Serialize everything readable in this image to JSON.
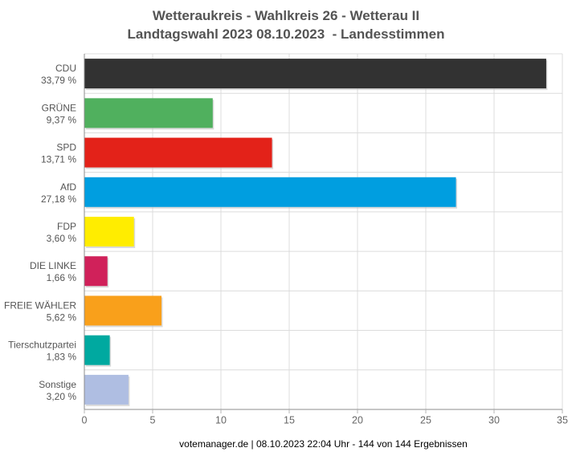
{
  "title": {
    "line1": "Wetteraukreis - Wahlkreis 26 - Wetterau II",
    "line2": "Landtagswahl 2023 08.10.2023  - Landesstimmen"
  },
  "footer": {
    "text": "votemanager.de | 08.10.2023 22:04 Uhr - 144 von 144 Ergebnissen"
  },
  "chart_data": {
    "type": "bar",
    "orientation": "horizontal",
    "title": "Wetteraukreis - Wahlkreis 26 - Wetterau II",
    "subtitle": "Landtagswahl 2023 08.10.2023  - Landesstimmen",
    "categories": [
      "CDU",
      "GRÜNE",
      "SPD",
      "AfD",
      "FDP",
      "DIE LINKE",
      "FREIE WÄHLER",
      "Tierschutzpartei",
      "Sonstige"
    ],
    "values": [
      33.79,
      9.37,
      13.71,
      27.18,
      3.6,
      1.66,
      5.62,
      1.83,
      3.2
    ],
    "value_labels": [
      "33,79 %",
      "9,37 %",
      "13,71 %",
      "27,18 %",
      "3,60 %",
      "1,66 %",
      "5,62 %",
      "1,83 %",
      "3,20 %"
    ],
    "bar_colors": [
      "#323232",
      "#50b05e",
      "#e32219",
      "#009ee0",
      "#ffed00",
      "#d0215a",
      "#f9a01b",
      "#00a9a0",
      "#afbee2"
    ],
    "xlabel": "",
    "ylabel": "",
    "xlim": [
      0,
      35
    ],
    "xticks": [
      0,
      5,
      10,
      15,
      20,
      25,
      30,
      35
    ],
    "grid": true,
    "legend": false
  },
  "style_colors": {
    "title_text": "#545454",
    "category_label_text": "#555555",
    "tick_label_text": "#666666",
    "axis_line": "#8c8c8c",
    "grid_line": "#dcdcdc",
    "footer_text": "#000000",
    "background": "#ffffff"
  }
}
